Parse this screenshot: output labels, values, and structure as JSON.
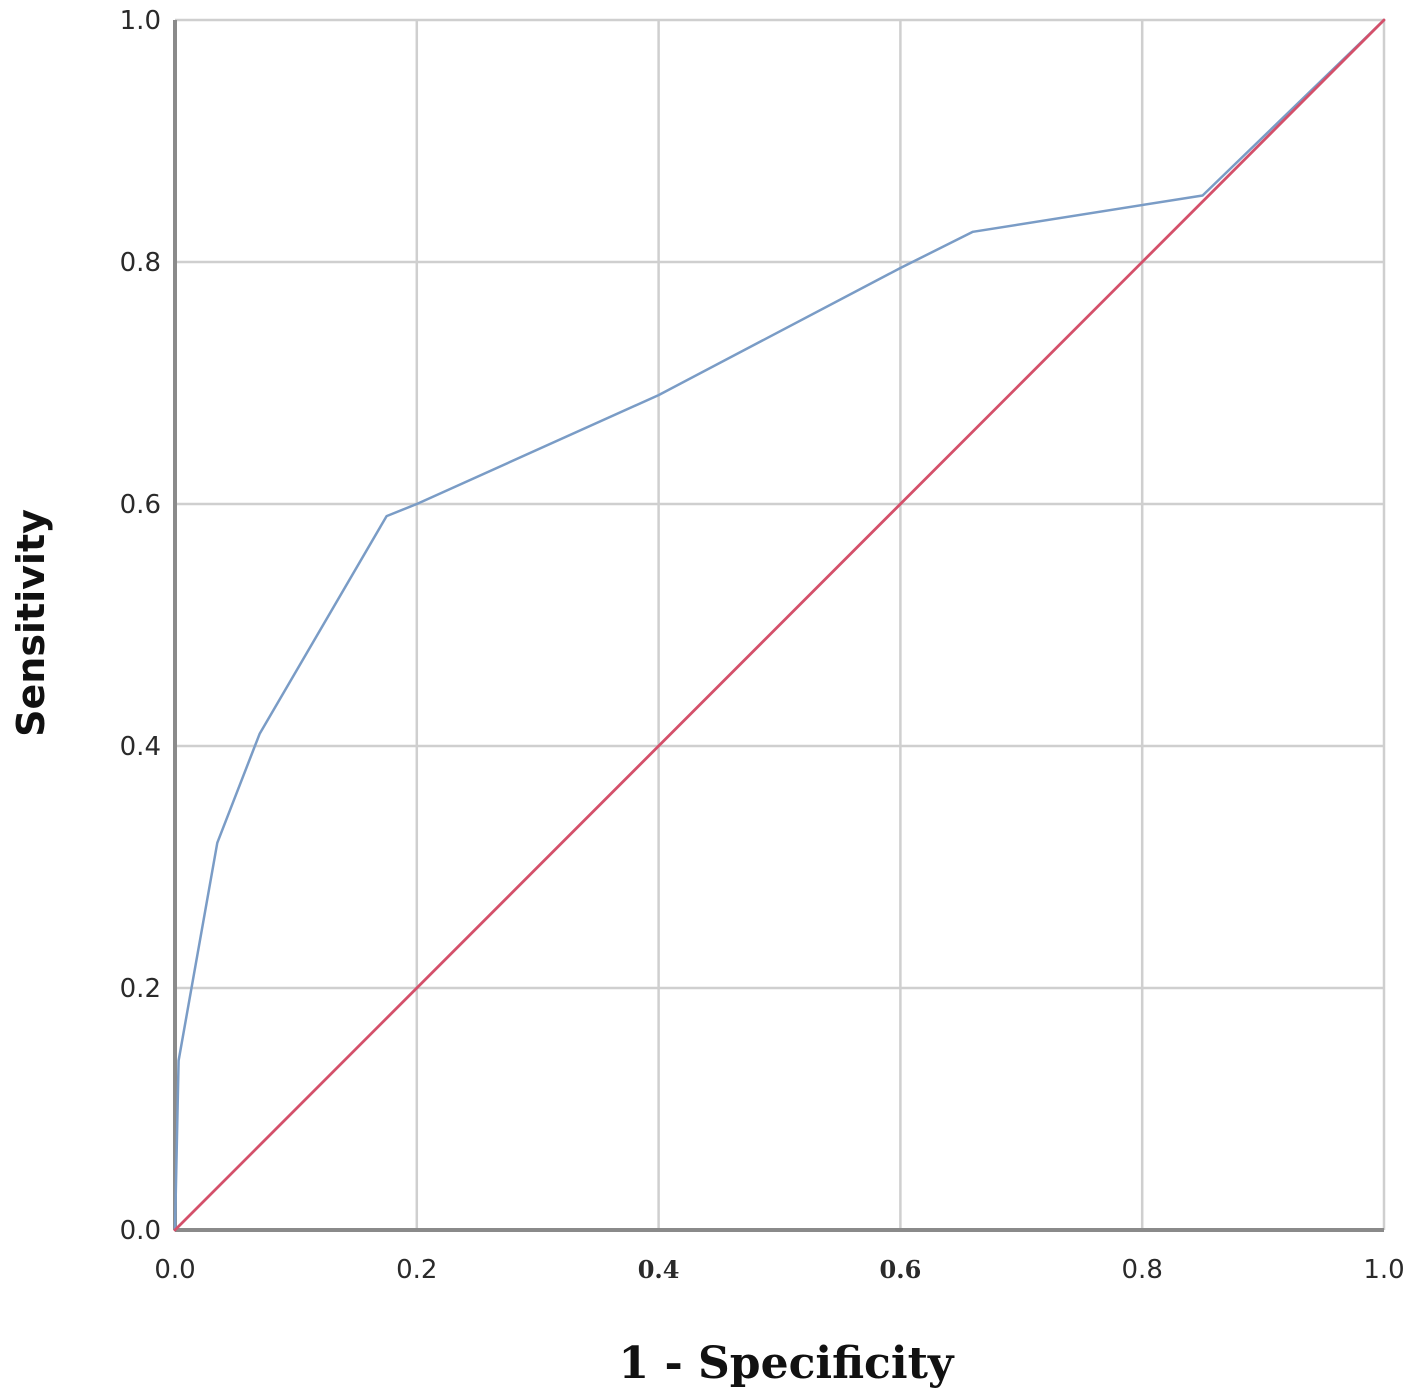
{
  "chart_data": {
    "type": "line",
    "title": "",
    "xlabel": "1 - Specificity",
    "ylabel": "Sensitivity",
    "xlim": [
      0,
      1
    ],
    "ylim": [
      0,
      1
    ],
    "grid": true,
    "x_ticks": [
      "0.0",
      "0.2",
      "0.4",
      "0.6",
      "0.8",
      "1.0"
    ],
    "y_ticks": [
      "0.0",
      "0.2",
      "0.4",
      "0.6",
      "0.8",
      "1.0"
    ],
    "series": [
      {
        "color": "#7a9cc6",
        "points": [
          [
            0.0,
            0.0
          ],
          [
            0.003,
            0.14
          ],
          [
            0.035,
            0.32
          ],
          [
            0.07,
            0.41
          ],
          [
            0.175,
            0.59
          ],
          [
            0.2,
            0.6
          ],
          [
            0.4,
            0.69
          ],
          [
            0.6,
            0.795
          ],
          [
            0.66,
            0.825
          ],
          [
            0.85,
            0.855
          ],
          [
            1.0,
            1.0
          ]
        ]
      },
      {
        "color": "#d4506a",
        "points": [
          [
            0.0,
            0.0
          ],
          [
            1.0,
            1.0
          ]
        ]
      }
    ],
    "legend": "none"
  }
}
